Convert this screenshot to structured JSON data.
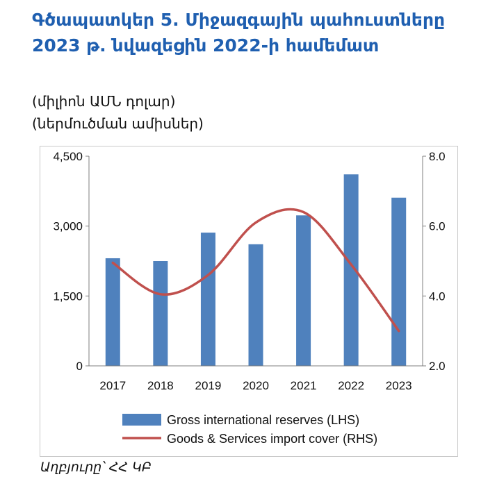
{
  "title_lines": [
    "Գծապատկեր  5.  Միջազգային պահուստները",
    "2023 թ. նվազեցին 2022-ի համեմատ"
  ],
  "units_lines": [
    "(միլիոն ԱՄՆ դոլար)",
    "(ներմուծման ամիսներ)"
  ],
  "source": "Աղբյուրը՝  ՀՀ ԿԲ",
  "colors": {
    "title": "#1f5fb0",
    "bars": "#4f81bd",
    "line": "#c0504d"
  },
  "chart_data": {
    "type": "bar",
    "categories": [
      "2017",
      "2018",
      "2019",
      "2020",
      "2021",
      "2022",
      "2023"
    ],
    "series": [
      {
        "name": "Gross international reserves (LHS)",
        "type": "bar",
        "axis": "left",
        "values": [
          2310,
          2250,
          2860,
          2610,
          3230,
          4110,
          3610
        ]
      },
      {
        "name": "Goods & Services import cover  (RHS)",
        "type": "line",
        "axis": "right",
        "smooth": true,
        "values": [
          4.95,
          4.05,
          4.6,
          6.1,
          6.4,
          4.9,
          3.0
        ]
      }
    ],
    "y_left": {
      "ylim": [
        0,
        4500
      ],
      "ticks": [
        0,
        1500,
        3000,
        4500
      ],
      "tick_labels": [
        "0",
        "1,500",
        "3,000",
        "4,500"
      ]
    },
    "y_right": {
      "ylim": [
        2.0,
        8.0
      ],
      "ticks": [
        2.0,
        4.0,
        6.0,
        8.0
      ],
      "tick_labels": [
        "2.0",
        "4.0",
        "6.0",
        "8.0"
      ]
    },
    "grid": false,
    "legend": "bottom"
  }
}
